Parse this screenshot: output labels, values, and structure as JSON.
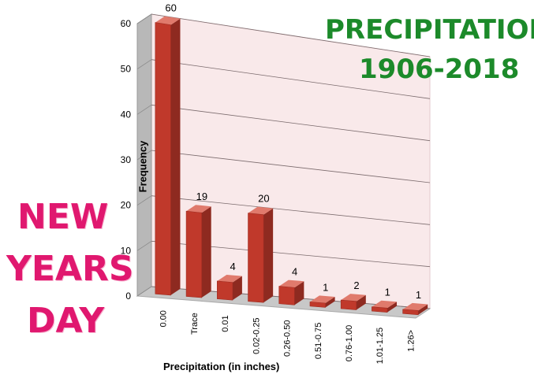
{
  "chart_data": {
    "type": "bar",
    "title": "PRECIPITATION",
    "subtitle": "1906-2018",
    "xlabel": "Precipitation (in inches)",
    "ylabel": "Frequency",
    "ylim": [
      0,
      60
    ],
    "yticks": [
      "0",
      "10",
      "20",
      "30",
      "40",
      "50",
      "60"
    ],
    "categories": [
      "0.00",
      "Trace",
      "0.01",
      "0.02-0.25",
      "0.26-0.50",
      "0.51-0.75",
      "0.76-1.00",
      "1.01-1.25",
      "1.26>"
    ],
    "values": [
      60,
      19,
      4,
      20,
      4,
      1,
      2,
      1,
      1
    ],
    "data_labels": [
      "60",
      "19",
      "4",
      "20",
      "4",
      "1",
      "2",
      "1",
      "1"
    ],
    "bar_color": "#c0392b",
    "grid": true
  },
  "side_text": {
    "line1": "NEW",
    "line2": "YEARS",
    "line3": "DAY"
  },
  "colors": {
    "title": "#1c8a2a",
    "side_text": "#e0186f",
    "wall": "#f9e9ea"
  }
}
